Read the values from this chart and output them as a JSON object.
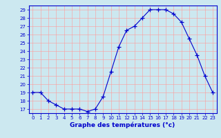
{
  "hours": [
    0,
    1,
    2,
    3,
    4,
    5,
    6,
    7,
    8,
    9,
    10,
    11,
    12,
    13,
    14,
    15,
    16,
    17,
    18,
    19,
    20,
    21,
    22,
    23
  ],
  "temps": [
    19,
    19,
    18,
    17.5,
    17,
    17,
    17,
    16.7,
    17,
    18.5,
    21.5,
    24.5,
    26.5,
    27,
    28,
    29,
    29,
    29,
    28.5,
    27.5,
    25.5,
    23.5,
    21,
    19
  ],
  "ylim_min": 16.5,
  "ylim_max": 29.5,
  "yticks": [
    17,
    18,
    19,
    20,
    21,
    22,
    23,
    24,
    25,
    26,
    27,
    28,
    29
  ],
  "xlabel": "Graphe des températures (°c)",
  "line_color": "#0000cc",
  "bg_color": "#cce8f0",
  "grid_color": "#ff9999",
  "axis_color": "#0000cc",
  "label_color": "#0000cc"
}
